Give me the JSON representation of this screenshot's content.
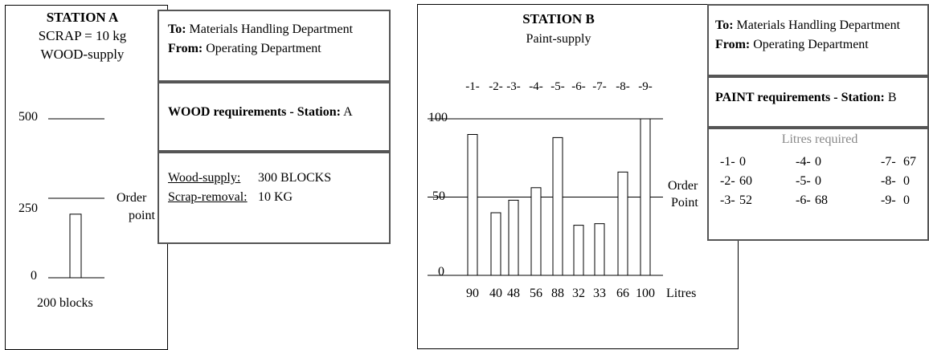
{
  "station_a": {
    "title": "STATION A",
    "scrap": "SCRAP = 10 kg",
    "supply": "WOOD-supply",
    "level_500": "500",
    "level_250": "250",
    "level_0": "0",
    "order_point_line1": "Order",
    "order_point_line2": "point",
    "stock_label": "200 blocks"
  },
  "memo_a": {
    "to_label": "To:",
    "to_value": "Materials Handling Department",
    "from_label": "From:",
    "from_value": "Operating Department",
    "requirement_title": "WOOD requirements - Station:",
    "station_id": "A",
    "items": [
      {
        "label": "Wood-supply:",
        "value": "300 BLOCKS"
      },
      {
        "label": "Scrap-removal:",
        "value": "10 KG"
      }
    ]
  },
  "station_b": {
    "title": "STATION B",
    "supply": "Paint-supply",
    "y_100": "100",
    "y_50": "50",
    "y_0": "0",
    "order_point_line1": "Order",
    "order_point_line2": "Point",
    "unit_label": "Litres"
  },
  "memo_b": {
    "to_label": "To:",
    "to_value": "Materials Handling Department",
    "from_label": "From:",
    "from_value": "Operating Department",
    "requirement_title": "PAINT requirements - Station:",
    "station_id": "B",
    "table_header": "Litres required",
    "rows": [
      [
        "-1-",
        "0",
        "-4-",
        "0",
        "-7-",
        "67"
      ],
      [
        "-2-",
        "60",
        "-5-",
        "0",
        "-8-",
        "0"
      ],
      [
        "-3-",
        "52",
        "-6-",
        "68",
        "-9-",
        "0"
      ]
    ]
  },
  "chart_data": [
    {
      "type": "bar",
      "title": "STATION A",
      "subtitle": "WOOD-supply",
      "categories": [
        ""
      ],
      "values": [
        200
      ],
      "ylim": [
        0,
        500
      ],
      "yticks": [
        0,
        250,
        500
      ],
      "order_point": 250,
      "xlabel": "200 blocks"
    },
    {
      "type": "bar",
      "title": "STATION B",
      "subtitle": "Paint-supply",
      "categories": [
        "-1-",
        "-2-",
        "-3-",
        "-4-",
        "-5-",
        "-6-",
        "-7-",
        "-8-",
        "-9-"
      ],
      "values": [
        90,
        40,
        48,
        56,
        88,
        32,
        33,
        66,
        100
      ],
      "value_labels": [
        "90",
        "40",
        "48",
        "56",
        "88",
        "32",
        "33",
        "66",
        "100"
      ],
      "ylim": [
        0,
        100
      ],
      "yticks": [
        0,
        50,
        100
      ],
      "order_point": 50,
      "xlabel": "Litres"
    }
  ]
}
